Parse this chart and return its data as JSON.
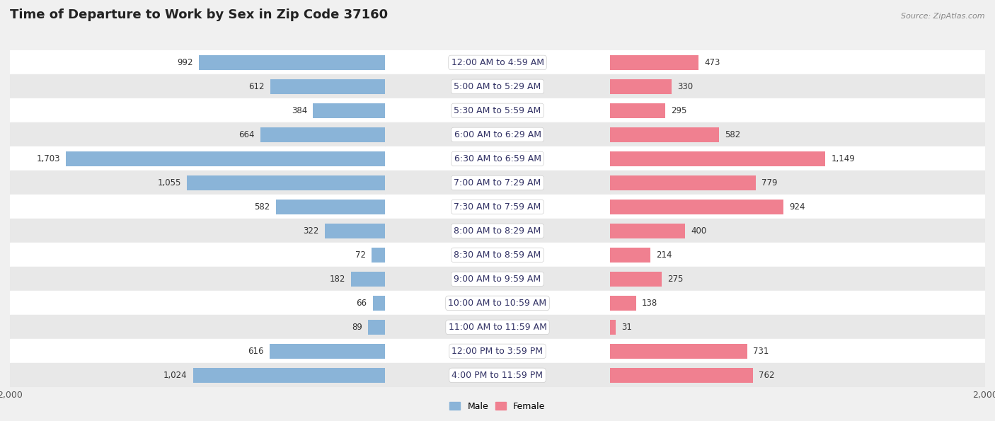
{
  "title": "Time of Departure to Work by Sex in Zip Code 37160",
  "source": "Source: ZipAtlas.com",
  "categories": [
    "12:00 AM to 4:59 AM",
    "5:00 AM to 5:29 AM",
    "5:30 AM to 5:59 AM",
    "6:00 AM to 6:29 AM",
    "6:30 AM to 6:59 AM",
    "7:00 AM to 7:29 AM",
    "7:30 AM to 7:59 AM",
    "8:00 AM to 8:29 AM",
    "8:30 AM to 8:59 AM",
    "9:00 AM to 9:59 AM",
    "10:00 AM to 10:59 AM",
    "11:00 AM to 11:59 AM",
    "12:00 PM to 3:59 PM",
    "4:00 PM to 11:59 PM"
  ],
  "male_values": [
    992,
    612,
    384,
    664,
    1703,
    1055,
    582,
    322,
    72,
    182,
    66,
    89,
    616,
    1024
  ],
  "female_values": [
    473,
    330,
    295,
    582,
    1149,
    779,
    924,
    400,
    214,
    275,
    138,
    31,
    731,
    762
  ],
  "male_color": "#8ab4d8",
  "female_color": "#f08090",
  "male_label": "Male",
  "female_label": "Female",
  "xlim": 2000,
  "background_color": "#f0f0f0",
  "row_color_even": "#ffffff",
  "row_color_odd": "#e8e8e8",
  "title_fontsize": 13,
  "label_fontsize": 9,
  "value_fontsize": 8.5,
  "axis_fontsize": 9,
  "source_fontsize": 8
}
